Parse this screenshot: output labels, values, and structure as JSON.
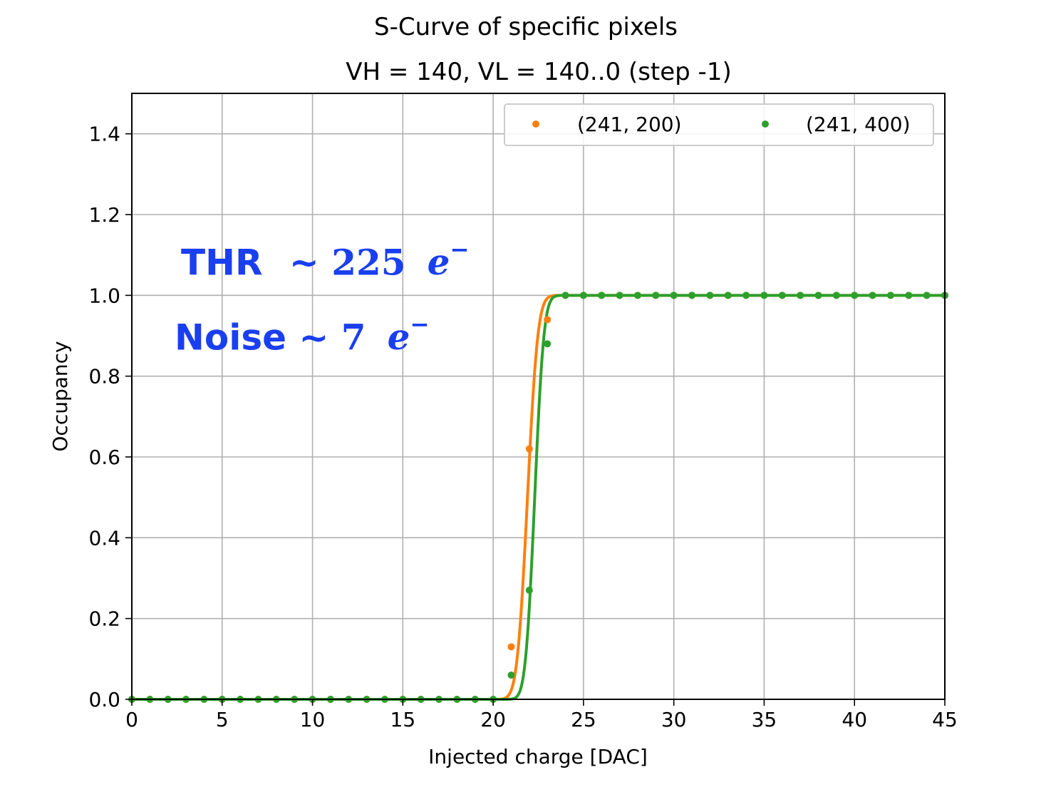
{
  "chart_data": {
    "type": "scatter",
    "title": "S-Curve of specific pixels",
    "subtitle": "VH = 140, VL = 140..0 (step -1)",
    "xlabel": "Injected charge [DAC]",
    "ylabel": "Occupancy",
    "xlim": [
      0,
      45
    ],
    "ylim": [
      0,
      1.5
    ],
    "xticks": [
      0,
      5,
      10,
      15,
      20,
      25,
      30,
      35,
      40,
      45
    ],
    "yticks": [
      0.0,
      0.2,
      0.4,
      0.6,
      0.8,
      1.0,
      1.2,
      1.4
    ],
    "ytick_labels": [
      "0.0",
      "0.2",
      "0.4",
      "0.6",
      "0.8",
      "1.0",
      "1.2",
      "1.4"
    ],
    "grid": true,
    "legend_position": "top-right",
    "series": [
      {
        "name": "(241, 200)",
        "color": "#ff7f0e",
        "x": [
          0,
          1,
          2,
          3,
          4,
          5,
          6,
          7,
          8,
          9,
          10,
          11,
          12,
          13,
          14,
          15,
          16,
          17,
          18,
          19,
          20,
          21,
          22,
          23,
          24,
          25,
          26,
          27,
          28,
          29,
          30,
          31,
          32,
          33,
          34,
          35,
          36,
          37,
          38,
          39,
          40,
          41,
          42,
          43,
          44,
          45
        ],
        "y": [
          0,
          0,
          0,
          0,
          0,
          0,
          0,
          0,
          0,
          0,
          0,
          0,
          0,
          0,
          0,
          0,
          0,
          0,
          0,
          0,
          0,
          0.13,
          0.62,
          0.94,
          1,
          1,
          1,
          1,
          1,
          1,
          1,
          1,
          1,
          1,
          1,
          1,
          1,
          1,
          1,
          1,
          1,
          1,
          1,
          1,
          1,
          1
        ],
        "fit": {
          "mu": 21.9,
          "sigma": 0.45
        }
      },
      {
        "name": "(241, 400)",
        "color": "#2ca02c",
        "x": [
          0,
          1,
          2,
          3,
          4,
          5,
          6,
          7,
          8,
          9,
          10,
          11,
          12,
          13,
          14,
          15,
          16,
          17,
          18,
          19,
          20,
          21,
          22,
          23,
          24,
          25,
          26,
          27,
          28,
          29,
          30,
          31,
          32,
          33,
          34,
          35,
          36,
          37,
          38,
          39,
          40,
          41,
          42,
          43,
          44,
          45
        ],
        "y": [
          0,
          0,
          0,
          0,
          0,
          0,
          0,
          0,
          0,
          0,
          0,
          0,
          0,
          0,
          0,
          0,
          0,
          0,
          0,
          0,
          0,
          0.06,
          0.27,
          0.88,
          1,
          1,
          1,
          1,
          1,
          1,
          1,
          1,
          1,
          1,
          1,
          1,
          1,
          1,
          1,
          1,
          1,
          1,
          1,
          1,
          1,
          1
        ],
        "fit": {
          "mu": 22.3,
          "sigma": 0.4
        }
      }
    ],
    "annotations": [
      {
        "prefix": "THR",
        "tilde": "~",
        "value": "225",
        "unit": "e",
        "sup": "−"
      },
      {
        "prefix": "Noise",
        "tilde": "~",
        "value": "7",
        "unit": "e",
        "sup": "−"
      }
    ]
  }
}
